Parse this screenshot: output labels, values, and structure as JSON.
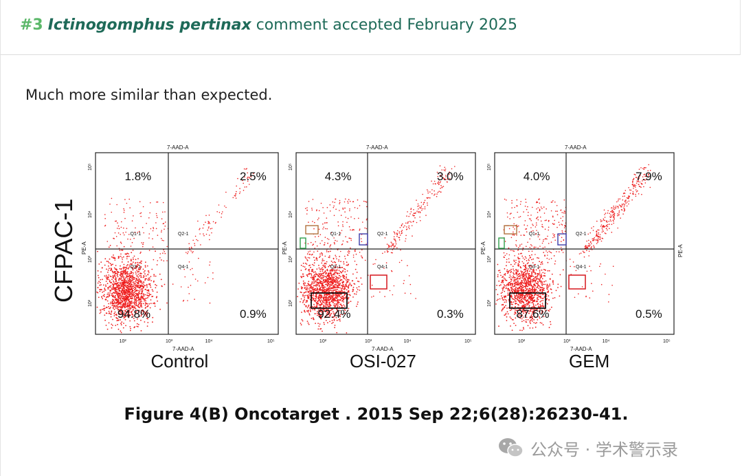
{
  "post": {
    "number": "#3",
    "species": "Ictinogomphus pertinax",
    "status_text": "comment accepted February 2025",
    "comment": "Much more similar than expected."
  },
  "figure": {
    "row_label": "CFPAC-1",
    "x_axis_label": "7-AAD-A",
    "y_axis_label": "PE-A",
    "x_ticks": [
      "10²",
      "10³",
      "10⁴",
      "10⁵"
    ],
    "y_ticks": [
      "10²",
      "10³",
      "10⁴",
      "10⁵"
    ],
    "quadrant_names": [
      "Q1-1",
      "Q2-1",
      "Q3-1",
      "Q4-1"
    ],
    "dot_color": "#ee1d1d",
    "panels": [
      {
        "name": "Control",
        "q1": "1.8%",
        "q2": "2.5%",
        "q3": "94.8%",
        "q4": "0.9%",
        "right_axis_label": ""
      },
      {
        "name": "OSI-027",
        "q1": "4.3%",
        "q2": "3.0%",
        "q3": "92.4%",
        "q4": "0.3%",
        "right_axis_label": ""
      },
      {
        "name": "GEM",
        "q1": "4.0%",
        "q2": "7.9%",
        "q3": "87.6%",
        "q4": "0.5%",
        "right_axis_label": "PE-A"
      }
    ],
    "highlight_colors": {
      "black": "#111111",
      "red": "#d8232a",
      "blue": "#3a3aa8",
      "green": "#2e9e4a",
      "brown": "#b0703c"
    }
  },
  "caption": "Figure 4(B) Oncotarget . 2015 Sep 22;6(28):26230-41.",
  "watermark": {
    "text": "公众号 · 学术警示录",
    "icon": "wechat-icon"
  }
}
